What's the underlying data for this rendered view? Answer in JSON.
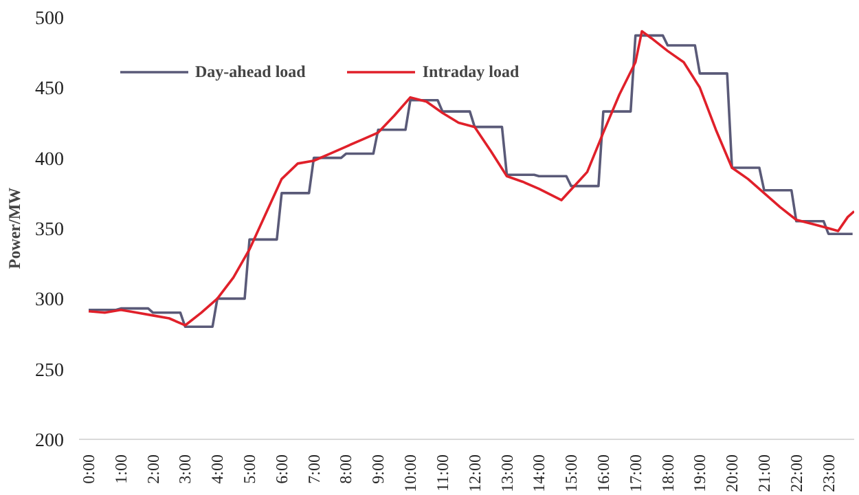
{
  "chart_data": {
    "type": "line",
    "ylabel": "Power/MW",
    "legend": "top",
    "grid": false,
    "marker": "none",
    "line_style": "solid",
    "xlim": [
      -0.3,
      23.8
    ],
    "ylim": [
      200,
      500
    ],
    "yticks": [
      200,
      250,
      300,
      350,
      400,
      450,
      500
    ],
    "xticks": [
      {
        "value": 0,
        "label": "0:00"
      },
      {
        "value": 1,
        "label": "1:00"
      },
      {
        "value": 2,
        "label": "2:00"
      },
      {
        "value": 3,
        "label": "3:00"
      },
      {
        "value": 4,
        "label": "4:00"
      },
      {
        "value": 5,
        "label": "5:00"
      },
      {
        "value": 6,
        "label": "6:00"
      },
      {
        "value": 7,
        "label": "7:00"
      },
      {
        "value": 8,
        "label": "8:00"
      },
      {
        "value": 9,
        "label": "9:00"
      },
      {
        "value": 10,
        "label": "10:00"
      },
      {
        "value": 11,
        "label": "11:00"
      },
      {
        "value": 12,
        "label": "12:00"
      },
      {
        "value": 13,
        "label": "13:00"
      },
      {
        "value": 14,
        "label": "14:00"
      },
      {
        "value": 15,
        "label": "15:00"
      },
      {
        "value": 16,
        "label": "16:00"
      },
      {
        "value": 17,
        "label": "17:00"
      },
      {
        "value": 18,
        "label": "18:00"
      },
      {
        "value": 19,
        "label": "19:00"
      },
      {
        "value": 20,
        "label": "20:00"
      },
      {
        "value": 21,
        "label": "21:00"
      },
      {
        "value": 22,
        "label": "22:00"
      },
      {
        "value": 23,
        "label": "23:00"
      }
    ],
    "series": [
      {
        "name": "Day-ahead load",
        "color": "#5a5a78",
        "x": [
          0,
          0.85,
          1,
          1.85,
          2,
          2.85,
          3,
          3.85,
          4,
          4.85,
          5,
          5.85,
          6,
          6.85,
          7,
          7.85,
          8,
          8.85,
          9,
          9.85,
          10,
          10.85,
          11,
          11.85,
          12,
          12.85,
          13,
          13.85,
          14,
          14.85,
          15,
          15.85,
          16,
          16.85,
          17,
          17.85,
          18,
          18.85,
          19,
          19.85,
          20,
          20.85,
          21,
          21.85,
          22,
          22.85,
          23,
          23.75
        ],
        "values": [
          292,
          292,
          293,
          293,
          290,
          290,
          280,
          280,
          300,
          300,
          342,
          342,
          375,
          375,
          400,
          400,
          403,
          403,
          420,
          420,
          441,
          441,
          433,
          433,
          422,
          422,
          388,
          388,
          387,
          387,
          380,
          380,
          433,
          433,
          487,
          487,
          480,
          480,
          460,
          460,
          393,
          393,
          377,
          377,
          355,
          355,
          346,
          346
        ]
      },
      {
        "name": "Intraday load",
        "color": "#e0202a",
        "x": [
          0,
          0.5,
          1,
          1.5,
          2,
          2.5,
          3,
          3.5,
          4,
          4.5,
          5,
          5.5,
          6,
          6.5,
          7,
          7.5,
          8,
          8.5,
          9,
          9.5,
          10,
          10.5,
          11,
          11.5,
          12,
          12.5,
          13,
          13.5,
          14,
          14.7,
          15.5,
          16,
          16.5,
          17,
          17.2,
          17.5,
          18,
          18.5,
          19,
          19.5,
          20,
          20.5,
          21,
          21.5,
          22,
          22.5,
          23,
          23.3,
          23.6,
          23.8
        ],
        "values": [
          291,
          290,
          292,
          290,
          288,
          286,
          281,
          290,
          300,
          315,
          335,
          360,
          385,
          396,
          398,
          403,
          408,
          413,
          418,
          430,
          443,
          440,
          432,
          425,
          422,
          405,
          387,
          383,
          378,
          370,
          390,
          418,
          445,
          468,
          490,
          485,
          476,
          468,
          450,
          420,
          393,
          385,
          375,
          365,
          356,
          353,
          350,
          348,
          358,
          362
        ]
      }
    ]
  }
}
